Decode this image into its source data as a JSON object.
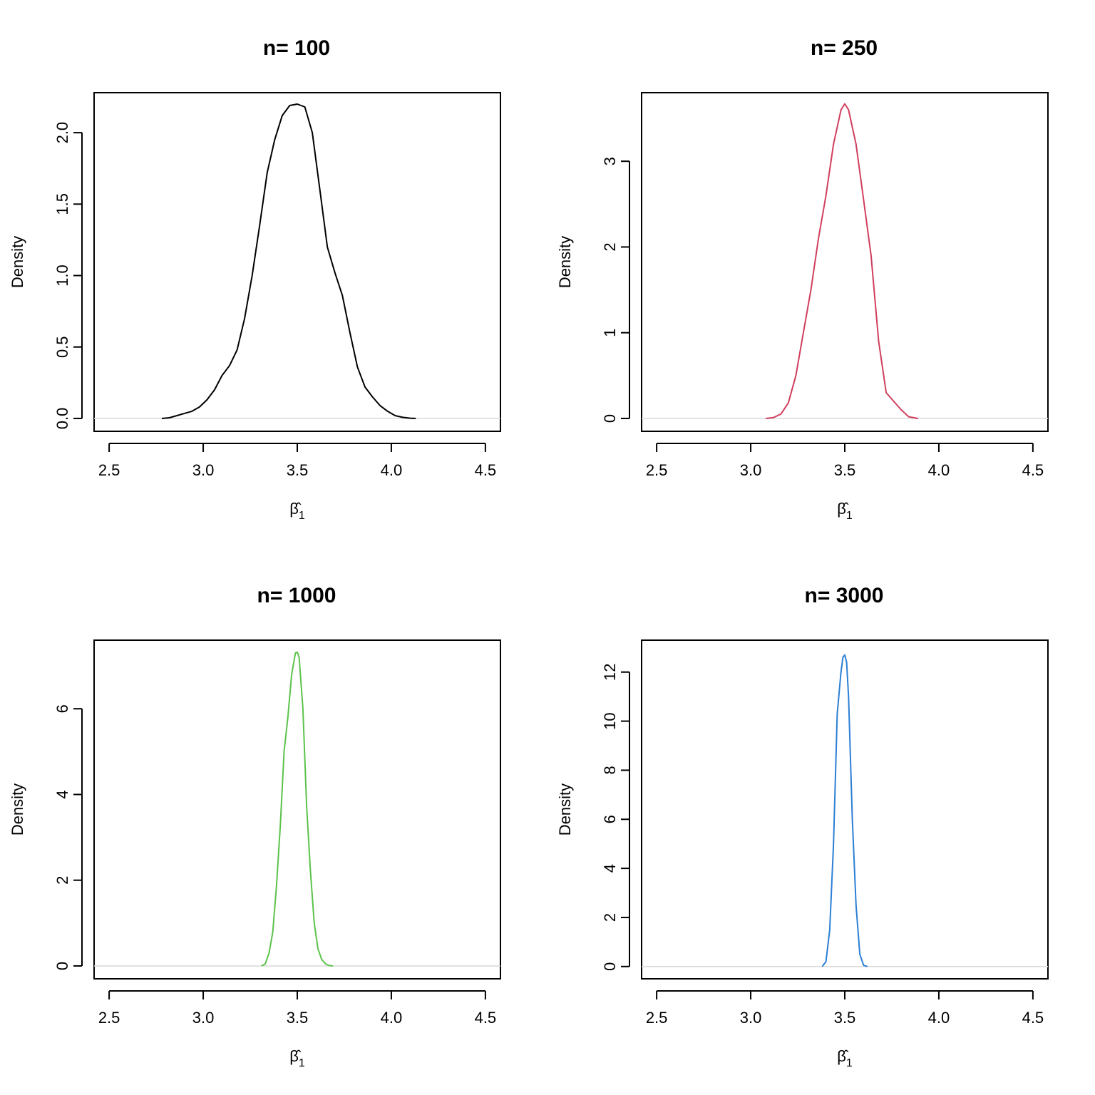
{
  "chart_data": [
    {
      "type": "line",
      "title": "n= 100",
      "xlabel": "β̂1",
      "ylabel": "Density",
      "xlim": [
        2.42,
        4.58
      ],
      "ylim": [
        -0.09,
        2.28
      ],
      "xticks": [
        2.5,
        3.0,
        3.5,
        4.0,
        4.5
      ],
      "xtick_labels": [
        "2.5",
        "3.0",
        "3.5",
        "4.0",
        "4.5"
      ],
      "yticks": [
        0.0,
        0.5,
        1.0,
        1.5,
        2.0
      ],
      "ytick_labels": [
        "0.0",
        "0.5",
        "1.0",
        "1.5",
        "2.0"
      ],
      "color": "#000000",
      "series": [
        {
          "x": [
            2.78,
            2.82,
            2.86,
            2.9,
            2.94,
            2.98,
            3.02,
            3.06,
            3.1,
            3.14,
            3.18,
            3.22,
            3.26,
            3.3,
            3.34,
            3.38,
            3.42,
            3.46,
            3.5,
            3.54,
            3.58,
            3.62,
            3.66,
            3.7,
            3.74,
            3.78,
            3.82,
            3.86,
            3.9,
            3.94,
            3.98,
            4.02,
            4.06,
            4.1,
            4.13
          ],
          "y": [
            0.0,
            0.005,
            0.02,
            0.035,
            0.05,
            0.08,
            0.13,
            0.2,
            0.3,
            0.37,
            0.48,
            0.7,
            1.0,
            1.35,
            1.72,
            1.95,
            2.12,
            2.19,
            2.2,
            2.18,
            2.0,
            1.6,
            1.2,
            1.02,
            0.86,
            0.6,
            0.36,
            0.22,
            0.15,
            0.09,
            0.05,
            0.02,
            0.008,
            0.002,
            0.0
          ]
        }
      ]
    },
    {
      "type": "line",
      "title": "n= 250",
      "xlabel": "β̂1",
      "ylabel": "Density",
      "xlim": [
        2.42,
        4.58
      ],
      "ylim": [
        -0.15,
        3.8
      ],
      "xticks": [
        2.5,
        3.0,
        3.5,
        4.0,
        4.5
      ],
      "xtick_labels": [
        "2.5",
        "3.0",
        "3.5",
        "4.0",
        "4.5"
      ],
      "yticks": [
        0,
        1,
        2,
        3
      ],
      "ytick_labels": [
        "0",
        "1",
        "2",
        "3"
      ],
      "color": "#D03F5E",
      "series": [
        {
          "x": [
            3.08,
            3.12,
            3.16,
            3.2,
            3.24,
            3.28,
            3.32,
            3.36,
            3.4,
            3.44,
            3.48,
            3.5,
            3.52,
            3.56,
            3.6,
            3.64,
            3.68,
            3.72,
            3.76,
            3.8,
            3.84,
            3.89
          ],
          "y": [
            0.0,
            0.01,
            0.05,
            0.18,
            0.5,
            1.0,
            1.5,
            2.1,
            2.6,
            3.2,
            3.6,
            3.67,
            3.6,
            3.2,
            2.55,
            1.9,
            0.9,
            0.3,
            0.2,
            0.1,
            0.02,
            0.0
          ]
        }
      ]
    },
    {
      "type": "line",
      "title": "n= 1000",
      "xlabel": "β̂1",
      "ylabel": "Density",
      "xlim": [
        2.42,
        4.58
      ],
      "ylim": [
        -0.3,
        7.6
      ],
      "xticks": [
        2.5,
        3.0,
        3.5,
        4.0,
        4.5
      ],
      "xtick_labels": [
        "2.5",
        "3.0",
        "3.5",
        "4.0",
        "4.5"
      ],
      "yticks": [
        0,
        2,
        4,
        6
      ],
      "ytick_labels": [
        "0",
        "2",
        "4",
        "6"
      ],
      "color": "#5CC24B",
      "series": [
        {
          "x": [
            3.31,
            3.33,
            3.35,
            3.37,
            3.39,
            3.41,
            3.43,
            3.45,
            3.47,
            3.49,
            3.5,
            3.51,
            3.53,
            3.55,
            3.57,
            3.59,
            3.61,
            3.63,
            3.65,
            3.67,
            3.69
          ],
          "y": [
            0.0,
            0.05,
            0.3,
            0.8,
            1.9,
            3.3,
            5.0,
            5.8,
            6.8,
            7.3,
            7.32,
            7.2,
            6.0,
            3.7,
            2.2,
            1.0,
            0.4,
            0.15,
            0.05,
            0.01,
            0.0
          ]
        }
      ]
    },
    {
      "type": "line",
      "title": "n= 3000",
      "xlabel": "β̂1",
      "ylabel": "Density",
      "xlim": [
        2.42,
        4.58
      ],
      "ylim": [
        -0.5,
        13.3
      ],
      "xticks": [
        2.5,
        3.0,
        3.5,
        4.0,
        4.5
      ],
      "xtick_labels": [
        "2.5",
        "3.0",
        "3.5",
        "4.0",
        "4.5"
      ],
      "yticks": [
        0,
        2,
        4,
        6,
        8,
        10,
        12
      ],
      "ytick_labels": [
        "0",
        "2",
        "4",
        "6",
        "8",
        "10",
        "12"
      ],
      "color": "#2C7FD4",
      "series": [
        {
          "x": [
            3.38,
            3.4,
            3.42,
            3.44,
            3.46,
            3.48,
            3.49,
            3.5,
            3.51,
            3.52,
            3.54,
            3.56,
            3.58,
            3.6,
            3.62
          ],
          "y": [
            0.0,
            0.2,
            1.5,
            5.0,
            10.3,
            12.0,
            12.6,
            12.7,
            12.4,
            11.0,
            6.0,
            2.5,
            0.5,
            0.05,
            0.0
          ]
        }
      ]
    }
  ]
}
